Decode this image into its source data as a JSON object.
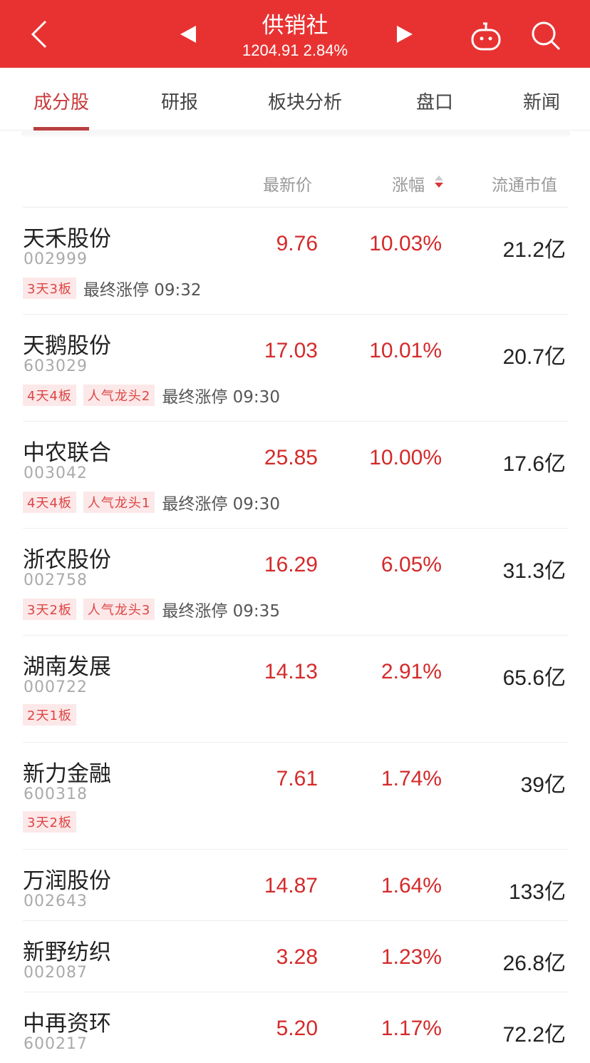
{
  "header": {
    "title": "供销社",
    "subtitle": "1204.91 2.84%",
    "icons": [
      "back-icon",
      "prev-icon",
      "next-icon",
      "robot-icon",
      "search-icon"
    ],
    "color": "#e83232"
  },
  "tabs": [
    {
      "label": "成分股",
      "active": true
    },
    {
      "label": "研报"
    },
    {
      "label": "板块分析"
    },
    {
      "label": "盘口"
    },
    {
      "label": "新闻"
    }
  ],
  "columns": {
    "price": "最新价",
    "change": "涨幅",
    "mktcap": "流通市值"
  },
  "stocks": [
    {
      "name": "天禾股份",
      "code": "002999",
      "price": "9.76",
      "change": "10.03%",
      "mktcap": "21.2亿",
      "tags": [
        "3天3板"
      ],
      "note": "最终涨停 09:32"
    },
    {
      "name": "天鹅股份",
      "code": "603029",
      "price": "17.03",
      "change": "10.01%",
      "mktcap": "20.7亿",
      "tags": [
        "4天4板",
        "人气龙头2"
      ],
      "note": "最终涨停 09:30"
    },
    {
      "name": "中农联合",
      "code": "003042",
      "price": "25.85",
      "change": "10.00%",
      "mktcap": "17.6亿",
      "tags": [
        "4天4板",
        "人气龙头1"
      ],
      "note": "最终涨停 09:30"
    },
    {
      "name": "浙农股份",
      "code": "002758",
      "price": "16.29",
      "change": "6.05%",
      "mktcap": "31.3亿",
      "tags": [
        "3天2板",
        "人气龙头3"
      ],
      "note": "最终涨停 09:35"
    },
    {
      "name": "湖南发展",
      "code": "000722",
      "price": "14.13",
      "change": "2.91%",
      "mktcap": "65.6亿",
      "tags": [
        "2天1板"
      ]
    },
    {
      "name": "新力金融",
      "code": "600318",
      "price": "7.61",
      "change": "1.74%",
      "mktcap": "39亿",
      "tags": [
        "3天2板"
      ]
    },
    {
      "name": "万润股份",
      "code": "002643",
      "price": "14.87",
      "change": "1.64%",
      "mktcap": "133亿"
    },
    {
      "name": "新野纺织",
      "code": "002087",
      "price": "3.28",
      "change": "1.23%",
      "mktcap": "26.8亿"
    },
    {
      "name": "中再资环",
      "code": "600217",
      "price": "5.20",
      "change": "1.17%",
      "mktcap": "72.2亿"
    }
  ]
}
